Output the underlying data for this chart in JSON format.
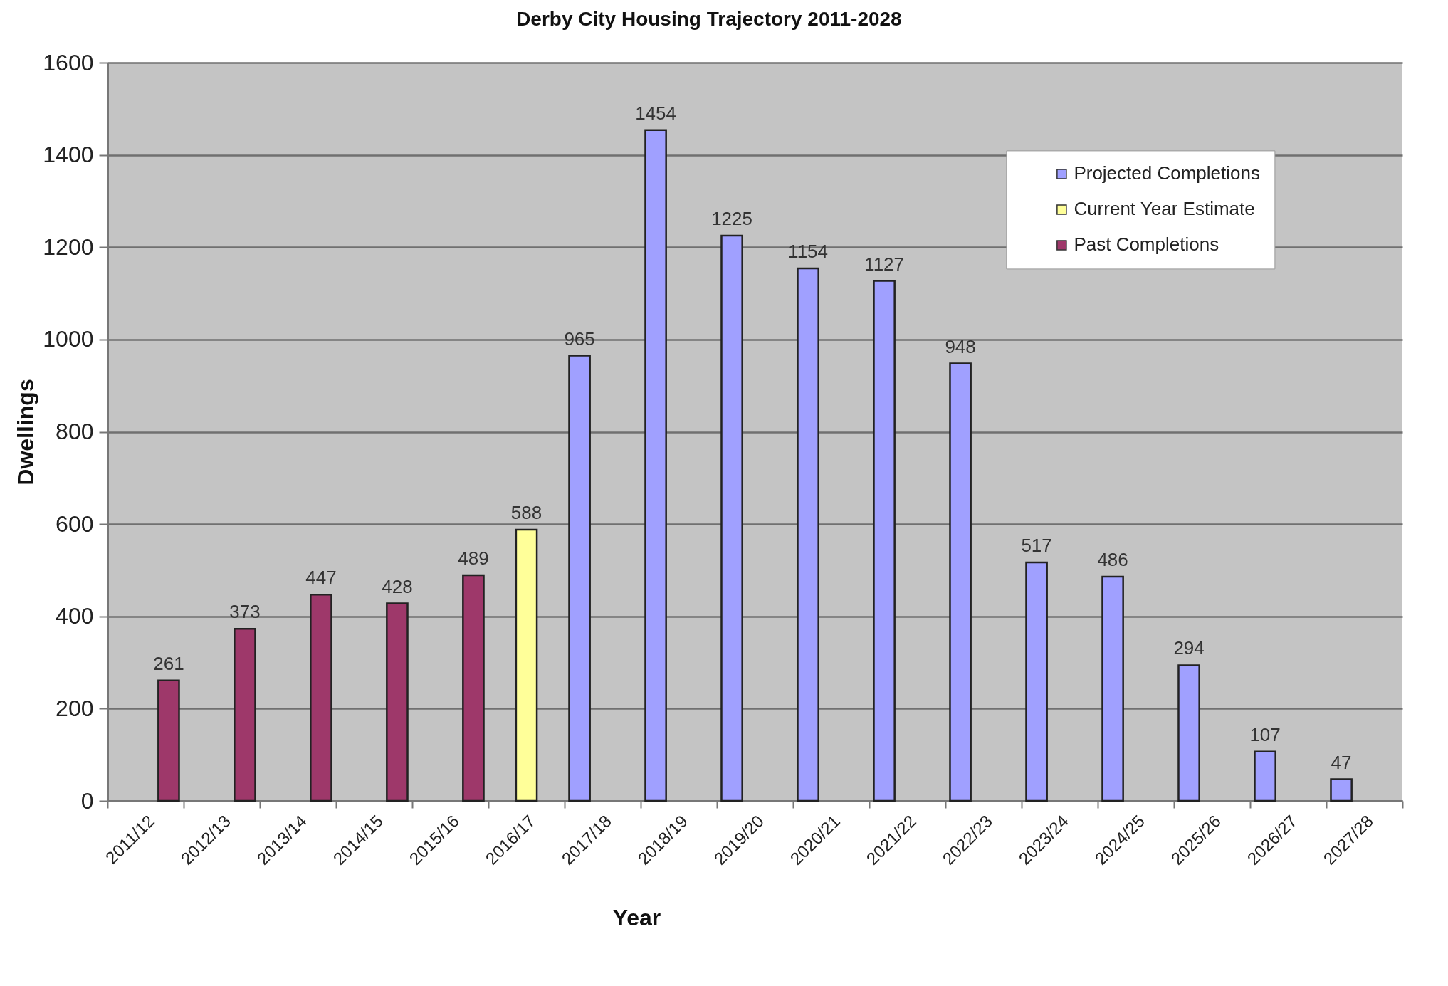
{
  "chart_data": {
    "type": "bar",
    "title": "Derby City Housing Trajectory 2011-2028",
    "xlabel": "Year",
    "ylabel": "Dwellings",
    "categories": [
      "2011/12",
      "2012/13",
      "2013/14",
      "2014/15",
      "2015/16",
      "2016/17",
      "2017/18",
      "2018/19",
      "2019/20",
      "2020/21",
      "2021/22",
      "2022/23",
      "2023/24",
      "2024/25",
      "2025/26",
      "2026/27",
      "2027/28"
    ],
    "series": [
      {
        "name": "Projected Completions",
        "color": "#a0a0ff",
        "values": [
          null,
          null,
          null,
          null,
          null,
          null,
          965,
          1454,
          1225,
          1154,
          1127,
          948,
          517,
          486,
          294,
          107,
          47
        ]
      },
      {
        "name": "Current Year Estimate",
        "color": "#ffff99",
        "values": [
          null,
          null,
          null,
          null,
          null,
          588,
          null,
          null,
          null,
          null,
          null,
          null,
          null,
          null,
          null,
          null,
          null
        ]
      },
      {
        "name": "Past Completions",
        "color": "#9e386a",
        "values": [
          261,
          373,
          447,
          428,
          489,
          null,
          null,
          null,
          null,
          null,
          null,
          null,
          null,
          null,
          null,
          null,
          null
        ]
      }
    ],
    "ylim": [
      0,
      1600
    ],
    "yticks": [
      0,
      200,
      400,
      600,
      800,
      1000,
      1200,
      1400,
      1600
    ],
    "grid": "y",
    "legend": "top right",
    "data_labels": true
  }
}
